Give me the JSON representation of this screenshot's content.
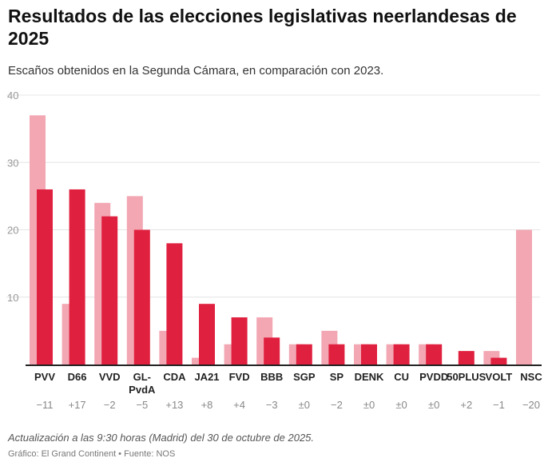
{
  "title": "Resultados de las elecciones legislativas neerlandesas de 2025",
  "subtitle": "Escaños obtenidos en la Segunda Cámara, en comparación con 2023.",
  "note": "Actualización a las 9:30 horas (Madrid) del 30 de octubre de 2025.",
  "source": "Gráfico: El Grand Continent • Fuente: NOS",
  "chart_data": {
    "type": "bar",
    "categories": [
      "PVV",
      "D66",
      "VVD",
      "GL-PvdA",
      "CDA",
      "JA21",
      "FVD",
      "BBB",
      "SGP",
      "SP",
      "DENK",
      "CU",
      "PVDD",
      "50PLUS",
      "VOLT",
      "NSC"
    ],
    "series": [
      {
        "values": [
          37,
          9,
          24,
          25,
          5,
          1,
          3,
          7,
          3,
          5,
          3,
          3,
          3,
          0,
          2,
          20
        ],
        "color": "#f2a7b3"
      },
      {
        "values": [
          26,
          26,
          22,
          20,
          18,
          9,
          7,
          4,
          3,
          3,
          3,
          3,
          3,
          2,
          1,
          0
        ],
        "color": "#e0203f"
      }
    ],
    "changes": [
      "−11",
      "+17",
      "−2",
      "−5",
      "+13",
      "+8",
      "+4",
      "−3",
      "±0",
      "−2",
      "±0",
      "±0",
      "±0",
      "+2",
      "−1",
      "−20"
    ],
    "yticks": [
      10,
      20,
      30,
      40
    ],
    "ylim": [
      0,
      40
    ],
    "grid": true
  }
}
